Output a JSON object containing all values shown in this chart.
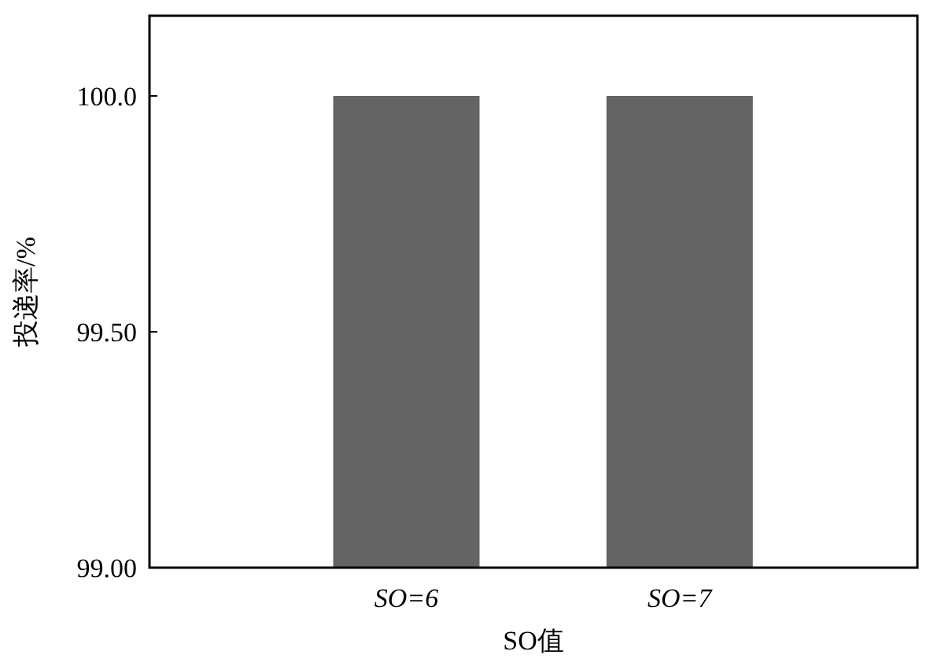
{
  "chart_data": {
    "type": "bar",
    "xlabel": "SO值",
    "ylabel": "投递率/%",
    "categories": [
      "SO=6",
      "SO=7"
    ],
    "values": [
      100.0,
      100.0
    ],
    "color": "#646464",
    "ylim": [
      99.0,
      100.17
    ],
    "yticks": [
      {
        "value": 99.0,
        "label": "99.00"
      },
      {
        "value": 99.5,
        "label": "99.50"
      },
      {
        "value": 100.0,
        "label": "100.0"
      }
    ]
  }
}
